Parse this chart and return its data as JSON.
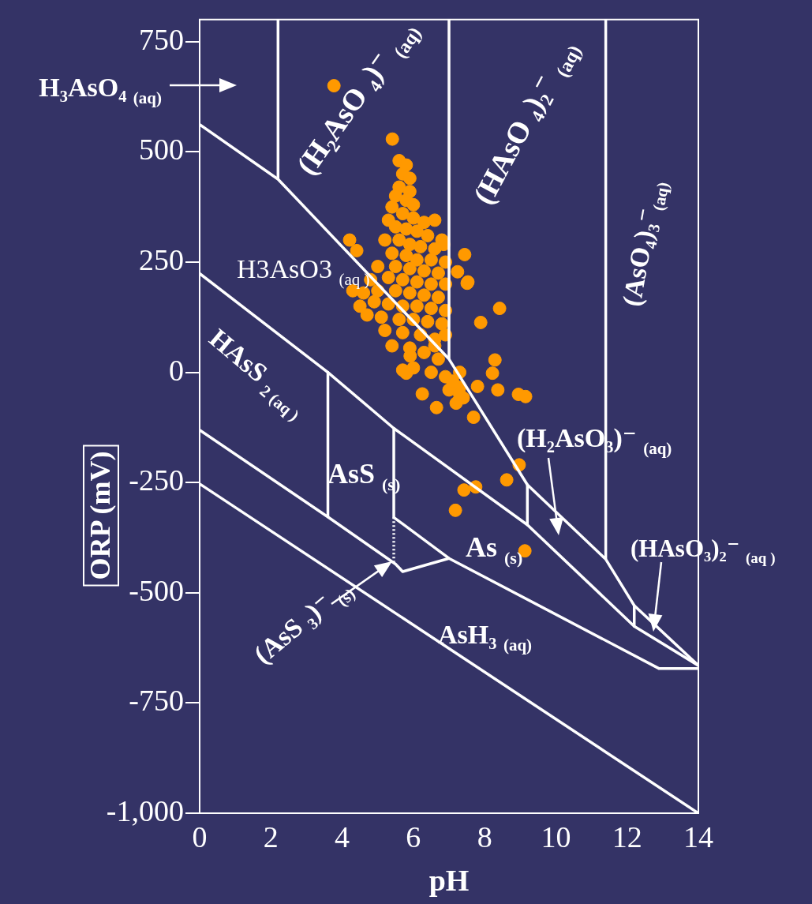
{
  "chart_data": {
    "type": "scatter",
    "xlabel": "pH",
    "ylabel": "ORP (mV)",
    "xlim": [
      0,
      14
    ],
    "ylim": [
      -1000,
      800
    ],
    "xticks": [
      0,
      2,
      4,
      6,
      8,
      10,
      12,
      14
    ],
    "yticks": [
      {
        "value": -1000,
        "label": "-1,000"
      },
      -750,
      -500,
      -250,
      0,
      250,
      500,
      750
    ],
    "legend": false,
    "series": [
      {
        "type": "line",
        "color": "#ffffff",
        "marker": "none",
        "line_style": "solid",
        "x": [
          0,
          2.2,
          7,
          9.2,
          11.4,
          12.2,
          14
        ],
        "values": [
          562,
          438,
          30,
          -255,
          -424,
          -529,
          -665
        ]
      },
      {
        "type": "line",
        "color": "#ffffff",
        "marker": "none",
        "line_style": "solid",
        "x": [
          0,
          3.6,
          5.45,
          9.2,
          12.2,
          14
        ],
        "values": [
          224,
          0,
          -127,
          -346,
          -576,
          -665
        ]
      },
      {
        "type": "line",
        "color": "#ffffff",
        "marker": "none",
        "line_style": "solid",
        "x": [
          0,
          3.6,
          5.5,
          5.7,
          7,
          12.9,
          14
        ],
        "values": [
          -131,
          -328,
          -435,
          -452,
          -422,
          -672,
          -672
        ]
      },
      {
        "type": "line",
        "color": "#ffffff",
        "marker": "none",
        "line_style": "solid",
        "x": [
          5.45,
          7
        ],
        "values": [
          -329,
          -422
        ]
      },
      {
        "type": "line",
        "color": "#ffffff",
        "marker": "none",
        "line_style": "solid",
        "x": [
          0,
          14
        ],
        "values": [
          -253,
          -1000
        ]
      },
      {
        "type": "line",
        "color": "#ffffff",
        "marker": "none",
        "line_style": "solid",
        "x": [
          2.2,
          2.2
        ],
        "values": [
          438,
          800
        ]
      },
      {
        "type": "line",
        "color": "#ffffff",
        "marker": "none",
        "line_style": "solid",
        "x": [
          7,
          7
        ],
        "values": [
          30,
          800
        ]
      },
      {
        "type": "line",
        "color": "#ffffff",
        "marker": "none",
        "line_style": "solid",
        "x": [
          11.4,
          11.4
        ],
        "values": [
          -424,
          800
        ]
      },
      {
        "type": "line",
        "color": "#ffffff",
        "marker": "none",
        "line_style": "solid",
        "x": [
          9.2,
          9.2
        ],
        "values": [
          -255,
          -346
        ]
      },
      {
        "type": "line",
        "color": "#ffffff",
        "marker": "none",
        "line_style": "solid",
        "x": [
          12.2,
          12.2
        ],
        "values": [
          -529,
          -576
        ]
      },
      {
        "type": "line",
        "color": "#ffffff",
        "marker": "none",
        "line_style": "solid",
        "x": [
          3.6,
          3.6
        ],
        "values": [
          0,
          -328
        ]
      },
      {
        "type": "line",
        "color": "#ffffff",
        "marker": "none",
        "line_style": "solid",
        "x": [
          5.45,
          5.45
        ],
        "values": [
          -127,
          -329
        ]
      },
      {
        "type": "line",
        "color": "#ffffff",
        "marker": "none",
        "line_style": "dotted",
        "x": [
          5.45,
          5.45
        ],
        "values": [
          -329,
          -430
        ]
      },
      {
        "type": "scatter",
        "color": "#ff9900",
        "marker": "circle",
        "x": [
          3.77,
          5.41,
          4.21,
          4.41,
          6.85,
          7.44,
          7.51,
          7.24,
          7.53,
          7.89,
          8.42,
          5.91,
          5.8,
          6.25,
          6.65,
          7.69,
          8.29,
          8.22,
          8.37,
          8.95,
          9.15,
          7.4,
          7.3,
          7.8,
          8.97,
          8.62,
          7.42,
          7.75,
          7.18,
          9.13,
          5.6,
          5.8,
          5.7,
          5.9,
          5.6,
          5.9,
          5.5,
          5.8,
          6.0,
          5.4,
          5.7,
          6.0,
          5.3,
          6.3,
          6.6,
          5.5,
          5.8,
          6.1,
          6.4,
          6.8,
          5.2,
          5.6,
          5.9,
          6.2,
          6.6,
          5.4,
          5.8,
          6.1,
          6.5,
          6.9,
          5.0,
          5.5,
          5.9,
          6.3,
          6.7,
          4.8,
          5.3,
          5.7,
          6.1,
          6.5,
          6.9,
          4.6,
          5.0,
          5.5,
          5.9,
          6.3,
          6.7,
          4.9,
          5.3,
          5.7,
          6.1,
          6.5,
          6.9,
          4.7,
          5.1,
          5.6,
          6.0,
          6.4,
          6.8,
          5.2,
          5.7,
          6.2,
          6.6,
          5.4,
          5.9,
          6.3,
          6.7,
          6.0,
          6.5,
          6.9,
          7.0,
          7.2,
          7.1,
          7.3,
          5.7,
          6.6,
          4.5,
          4.3,
          6.9,
          7.3
        ],
        "values": [
          650,
          529,
          300,
          276,
          290,
          267,
          202,
          228,
          205,
          113,
          145,
          37,
          -2,
          -49,
          -80,
          -102,
          28,
          -2,
          -40,
          -50,
          -55,
          -58,
          -34,
          -32,
          -210,
          -244,
          -267,
          -260,
          -313,
          -405,
          480,
          470,
          450,
          440,
          420,
          410,
          400,
          390,
          380,
          375,
          360,
          350,
          345,
          340,
          345,
          330,
          325,
          320,
          310,
          300,
          300,
          300,
          290,
          285,
          280,
          270,
          265,
          255,
          255,
          250,
          240,
          240,
          235,
          230,
          225,
          210,
          215,
          210,
          205,
          200,
          200,
          180,
          185,
          185,
          180,
          175,
          170,
          160,
          155,
          150,
          150,
          145,
          140,
          130,
          125,
          120,
          120,
          115,
          110,
          95,
          90,
          85,
          75,
          60,
          55,
          45,
          30,
          10,
          0,
          -10,
          -40,
          -70,
          -20,
          -50,
          5,
          60,
          150,
          185,
          85,
          0
        ]
      }
    ],
    "annotations": [
      "H₃AsO₄ $_{(aq)}$",
      "(H₂AsO ₄)⁻ $_{(aq)}$",
      "(HAsO ₄)₂⁻ $_{(aq)}$",
      "(AsO₄)₃⁻$_{(aq)}$",
      "H3AsO3 $_{(aq )}$",
      "HAsS $_{2 (aq )}$",
      "AsS $_{(s)}$",
      "As $_{(s)}$",
      "AsH₃ $_{(aq)}$",
      "(AsS ₃)⁻ $_{(s)}$",
      "(H₂AsO₃)⁻ $_{(aq)}$",
      "(HAsO₃)₂⁻ $_{(aq )}$"
    ]
  }
}
